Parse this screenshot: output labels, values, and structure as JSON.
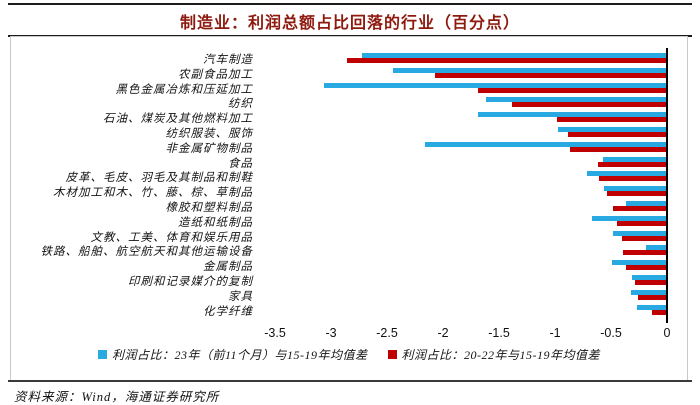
{
  "header": {
    "title": "制造业：利润总额占比回落的行业（百分点）"
  },
  "colors": {
    "series_blue": "#29A9E1",
    "series_red": "#C00000",
    "title_text": "#8E1A0F",
    "axis_line": "#000000",
    "box_border": "#C9C9C9"
  },
  "chart_data": {
    "type": "bar",
    "orientation": "horizontal",
    "title": "制造业：利润总额占比回落的行业（百分点）",
    "categories": [
      "汽车制造",
      "农副食品加工",
      "黑色金属冶炼和压延加工",
      "纺织",
      "石油、煤炭及其他燃料加工",
      "纺织服装、服饰",
      "非金属矿物制品",
      "食品",
      "皮革、毛皮、羽毛及其制品和制鞋",
      "木材加工和木、竹、藤、棕、草制品",
      "橡胶和塑料制品",
      "造纸和纸制品",
      "文教、工美、体育和娱乐用品",
      "铁路、船舶、航空航天和其他运输设备",
      "金属制品",
      "印刷和记录媒介的复制",
      "家具",
      "化学纤维"
    ],
    "series": [
      {
        "name": "利润占比：23年（前11个月）与15-19年均值差",
        "color": "#29A9E1",
        "values": [
          -2.72,
          -2.45,
          -3.06,
          -1.62,
          -1.69,
          -0.97,
          -2.16,
          -0.57,
          -0.71,
          -0.56,
          -0.37,
          -0.67,
          -0.48,
          -0.19,
          -0.49,
          -0.31,
          -0.32,
          -0.27
        ]
      },
      {
        "name": "利润占比：20-22年与15-19年均值差",
        "color": "#C00000",
        "values": [
          -2.86,
          -2.07,
          -1.69,
          -1.38,
          -0.98,
          -0.88,
          -0.87,
          -0.62,
          -0.61,
          -0.54,
          -0.48,
          -0.45,
          -0.4,
          -0.39,
          -0.37,
          -0.29,
          -0.26,
          -0.13
        ]
      }
    ],
    "xlim": [
      -3.5,
      0
    ],
    "xticks": [
      -3.5,
      -3,
      -2.5,
      -2,
      -1.5,
      -1,
      -0.5,
      0
    ],
    "xtick_labels": [
      "-3.5",
      "-3",
      "-2.5",
      "-2",
      "-1.5",
      "-1",
      "-0.5",
      "0"
    ],
    "grid": false,
    "legend_position": "bottom"
  },
  "footer": {
    "source": "资料来源：Wind，海通证券研究所"
  }
}
